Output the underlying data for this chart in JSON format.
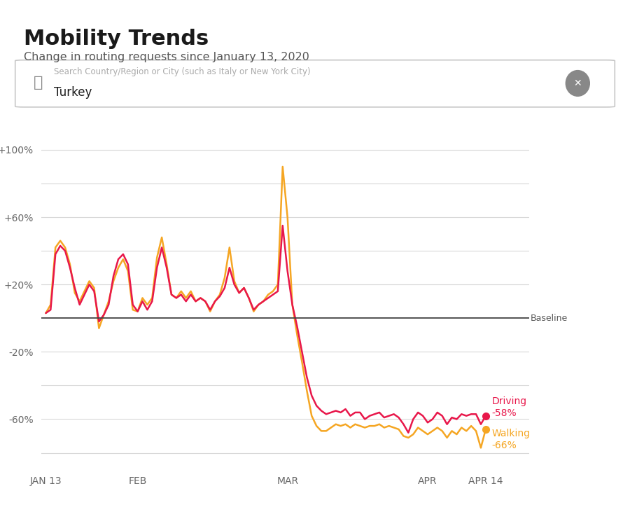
{
  "title": "Mobility Trends",
  "subtitle": "Change in routing requests since January 13, 2020",
  "search_placeholder": "Search Country/Region or City (such as Italy or New York City)",
  "search_value": "Turkey",
  "background_color": "#ffffff",
  "driving_color": "#e8174a",
  "walking_color": "#f5a623",
  "baseline_color": "#444444",
  "grid_color": "#d8d8d8",
  "x_tick_labels": [
    "JAN 13",
    "FEB",
    "MAR",
    "APR",
    "APR 14"
  ],
  "ylim": [
    -90,
    115
  ],
  "driving_label": "Driving\n-58%",
  "walking_label": "Walking\n-66%",
  "driving": [
    3,
    5,
    38,
    43,
    40,
    30,
    18,
    8,
    14,
    20,
    16,
    -2,
    2,
    8,
    25,
    35,
    38,
    32,
    8,
    4,
    10,
    5,
    10,
    30,
    42,
    30,
    14,
    12,
    14,
    10,
    14,
    10,
    12,
    10,
    5,
    10,
    13,
    18,
    30,
    20,
    15,
    18,
    12,
    5,
    8,
    10,
    12,
    14,
    16,
    55,
    28,
    8,
    -5,
    -20,
    -35,
    -46,
    -52,
    -55,
    -57,
    -56,
    -55,
    -56,
    -54,
    -58,
    -56,
    -56,
    -60,
    -58,
    -57,
    -56,
    -59,
    -58,
    -57,
    -59,
    -63,
    -68,
    -60,
    -56,
    -58,
    -62,
    -60,
    -56,
    -58,
    -63,
    -59,
    -60,
    -57,
    -58,
    -57,
    -57,
    -63,
    -58
  ],
  "walking": [
    3,
    8,
    42,
    46,
    42,
    32,
    15,
    10,
    16,
    22,
    18,
    -6,
    2,
    10,
    22,
    30,
    35,
    28,
    5,
    4,
    12,
    8,
    12,
    36,
    48,
    32,
    14,
    12,
    16,
    12,
    16,
    10,
    12,
    10,
    4,
    10,
    14,
    24,
    42,
    22,
    15,
    18,
    12,
    4,
    8,
    10,
    14,
    16,
    20,
    90,
    60,
    8,
    -10,
    -26,
    -43,
    -58,
    -64,
    -67,
    -67,
    -65,
    -63,
    -64,
    -63,
    -65,
    -63,
    -64,
    -65,
    -64,
    -64,
    -63,
    -65,
    -64,
    -65,
    -66,
    -70,
    -71,
    -69,
    -65,
    -67,
    -69,
    -67,
    -65,
    -67,
    -71,
    -67,
    -69,
    -65,
    -67,
    -64,
    -67,
    -77,
    -66
  ]
}
